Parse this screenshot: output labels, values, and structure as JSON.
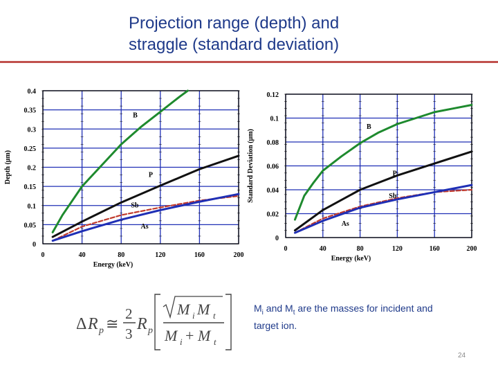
{
  "slide": {
    "title_line1": "Projection range (depth) and",
    "title_line2": "straggle (standard deviation)",
    "note_m": "M",
    "note_i": "i",
    "note_and": " and M",
    "note_t": "t",
    "note_rest": " are the masses for incident and target ion.",
    "page_number": "24"
  },
  "formula": {
    "lhs_delta": "Δ",
    "lhs_r": "R",
    "sub_p": "p",
    "approx": "≅",
    "num": "2",
    "den": "3",
    "mi": "M",
    "mt": "M",
    "plus": "+",
    "sub_i": "i",
    "sub_t": "t"
  },
  "colors": {
    "B": "#1e8a2e",
    "P": "#111111",
    "Sb": "#c0392b",
    "As": "#1f2fb5",
    "grid": "#1f2fb5",
    "title": "#1f3a8a",
    "rule": "#c0504d"
  },
  "chart_data": [
    {
      "type": "line",
      "title": "",
      "xlabel": "Energy (keV)",
      "ylabel": "Depth (μm)",
      "xlim": [
        0,
        200
      ],
      "ylim": [
        0,
        0.4
      ],
      "xticks": [
        "0",
        "40",
        "80",
        "120",
        "160",
        "200"
      ],
      "yticks": [
        "0",
        "0.05",
        "0.1",
        "0.15",
        "0.2",
        "0.25",
        "0.3",
        "0.35",
        "0.4"
      ],
      "grid": true,
      "series": [
        {
          "name": "B",
          "x": [
            10,
            20,
            40,
            60,
            80,
            100,
            120,
            140,
            148
          ],
          "y": [
            0.03,
            0.075,
            0.15,
            0.205,
            0.26,
            0.305,
            0.345,
            0.385,
            0.4
          ]
        },
        {
          "name": "P",
          "x": [
            10,
            40,
            80,
            120,
            160,
            200
          ],
          "y": [
            0.018,
            0.058,
            0.108,
            0.152,
            0.195,
            0.23
          ]
        },
        {
          "name": "Sb",
          "x": [
            10,
            40,
            80,
            120,
            160,
            200
          ],
          "y": [
            0.008,
            0.045,
            0.075,
            0.095,
            0.113,
            0.125
          ]
        },
        {
          "name": "As",
          "x": [
            10,
            40,
            80,
            120,
            160,
            200
          ],
          "y": [
            0.008,
            0.033,
            0.063,
            0.088,
            0.11,
            0.13
          ]
        }
      ],
      "labels": [
        {
          "text": "B",
          "x": 92,
          "y": 0.33
        },
        {
          "text": "P",
          "x": 108,
          "y": 0.175
        },
        {
          "text": "Sb",
          "x": 90,
          "y": 0.095
        },
        {
          "text": "As",
          "x": 100,
          "y": 0.04
        }
      ]
    },
    {
      "type": "line",
      "title": "",
      "xlabel": "Energy (keV)",
      "ylabel": "Standard Deviation (μm)",
      "xlim": [
        0,
        200
      ],
      "ylim": [
        0,
        0.12
      ],
      "xticks": [
        "0",
        "40",
        "80",
        "120",
        "160",
        "200"
      ],
      "yticks": [
        "0",
        "0.02",
        "0.04",
        "0.06",
        "0.08",
        "0.1",
        "0.12"
      ],
      "grid": true,
      "series": [
        {
          "name": "B",
          "x": [
            10,
            20,
            30,
            40,
            60,
            80,
            100,
            120,
            140,
            160,
            180,
            200
          ],
          "y": [
            0.015,
            0.035,
            0.046,
            0.056,
            0.068,
            0.079,
            0.088,
            0.095,
            0.1,
            0.105,
            0.108,
            0.111
          ]
        },
        {
          "name": "P",
          "x": [
            10,
            40,
            80,
            120,
            160,
            200
          ],
          "y": [
            0.006,
            0.023,
            0.04,
            0.052,
            0.062,
            0.072
          ]
        },
        {
          "name": "Sb",
          "x": [
            10,
            40,
            80,
            120,
            160,
            200
          ],
          "y": [
            0.004,
            0.016,
            0.026,
            0.033,
            0.038,
            0.04
          ]
        },
        {
          "name": "As",
          "x": [
            10,
            40,
            80,
            120,
            160,
            200
          ],
          "y": [
            0.004,
            0.014,
            0.025,
            0.032,
            0.038,
            0.044
          ]
        }
      ],
      "labels": [
        {
          "text": "B",
          "x": 87,
          "y": 0.091
        },
        {
          "text": "P",
          "x": 115,
          "y": 0.052
        },
        {
          "text": "Sb",
          "x": 111,
          "y": 0.033
        },
        {
          "text": "As",
          "x": 60,
          "y": 0.01
        }
      ]
    }
  ]
}
